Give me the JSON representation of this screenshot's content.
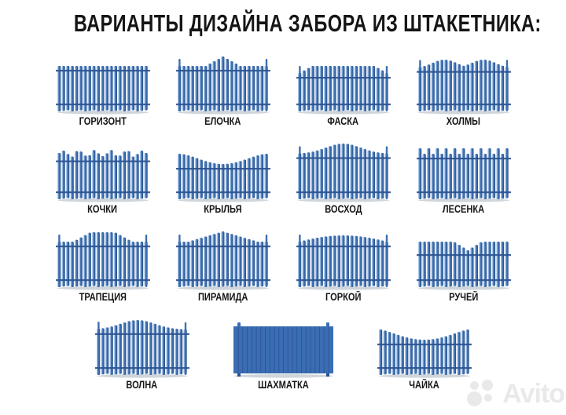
{
  "title": "ВАРИАНТЫ ДИЗАЙНА ЗАБОРА ИЗ ШТАКЕТНИКА:",
  "rows": [
    {
      "items": [
        {
          "label": "ГОРИЗОНТ",
          "profile": "flat",
          "endposts": false
        },
        {
          "label": "ЕЛОЧКА",
          "profile": "elochka",
          "endposts": true
        },
        {
          "label": "ФАСКА",
          "profile": "faska",
          "endposts": true
        },
        {
          "label": "ХОЛМЫ",
          "profile": "holmy",
          "endposts": true
        }
      ]
    },
    {
      "items": [
        {
          "label": "КОЧКИ",
          "profile": "kochki",
          "endposts": false
        },
        {
          "label": "КРЫЛЬЯ",
          "profile": "krylya",
          "endposts": false
        },
        {
          "label": "ВОСХОД",
          "profile": "voskhod",
          "endposts": true
        },
        {
          "label": "ЛЕСЕНКА",
          "profile": "lesenka",
          "endposts": false
        }
      ]
    },
    {
      "items": [
        {
          "label": "ТРАПЕЦИЯ",
          "profile": "trapeciya",
          "endposts": true
        },
        {
          "label": "ПИРАМИДА",
          "profile": "piramida",
          "endposts": true
        },
        {
          "label": "ГОРКОЙ",
          "profile": "gorkoy",
          "endposts": true
        },
        {
          "label": "РУЧЕЙ",
          "profile": "ruchey",
          "endposts": false
        }
      ]
    },
    {
      "items": [
        {
          "label": "ВОЛНА",
          "profile": "volna",
          "endposts": true
        },
        {
          "label": "ШАХМАТКА",
          "profile": "shahmatka",
          "endposts": false,
          "wide": true
        },
        {
          "label": "ЧАЙКА",
          "profile": "chaika",
          "endposts": false
        }
      ]
    }
  ],
  "colors": {
    "picket_mid": "#3d6fb0",
    "picket_light": "#a9c7e8",
    "picket_dark": "#274d85",
    "rail": "#2b5290",
    "solid_fill": "#3a6db3",
    "solid_line": "#2b5290",
    "shadow": "#96a1ad",
    "title": "#151515",
    "watermark": "#e9e9e9"
  },
  "watermark": {
    "text": "Avito"
  }
}
